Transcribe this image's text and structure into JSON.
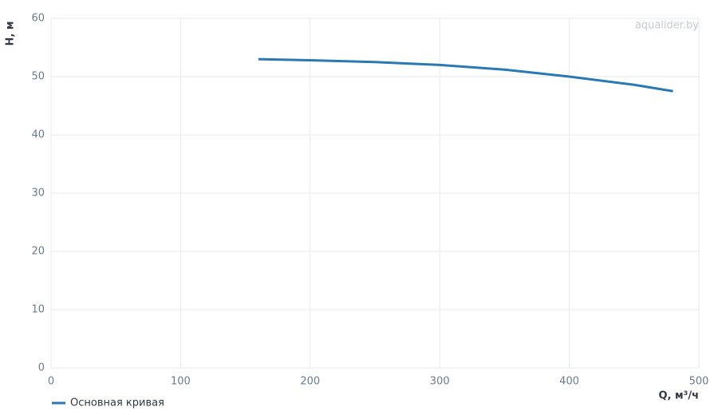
{
  "chart_data": {
    "type": "line",
    "x_label": "Q, м³/ч",
    "y_label": "H, м",
    "watermark": "aqualider.by",
    "x": [
      160,
      200,
      250,
      300,
      350,
      400,
      450,
      480
    ],
    "series": [
      {
        "name": "Основная кривая",
        "color": "#2a78b4",
        "values": [
          53,
          52.8,
          52.5,
          52,
          51.2,
          50,
          48.6,
          47.5
        ]
      }
    ],
    "xlim": [
      0,
      500
    ],
    "xticks": [
      0,
      100,
      200,
      300,
      400,
      500
    ],
    "ylim": [
      0,
      60
    ],
    "yticks": [
      0,
      10,
      20,
      30,
      40,
      50,
      60
    ],
    "grid": true,
    "legend": "bottom-left"
  }
}
